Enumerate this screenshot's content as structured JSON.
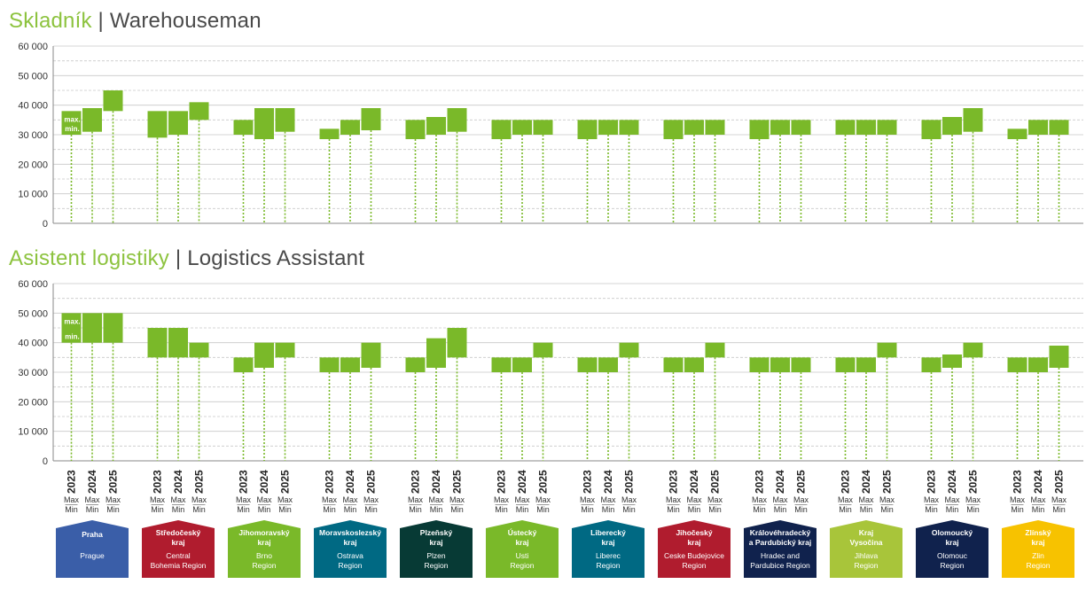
{
  "chart_data": [
    {
      "type": "range-bar",
      "title_cz": "Skladník",
      "title_sep": "|",
      "title_en": "Warehouseman",
      "ylim": [
        0,
        60000
      ],
      "yticks": [
        "0",
        "10 000",
        "20 000",
        "30 000",
        "40 000",
        "50 000",
        "60 000"
      ],
      "ytick_values": [
        0,
        10000,
        20000,
        30000,
        40000,
        50000,
        60000
      ],
      "grid": true,
      "bar_color": "#7ab929",
      "annot_max": "max.",
      "annot_min": "min.",
      "regions": [
        {
          "ranges": [
            [
              30000,
              38000
            ],
            [
              31000,
              39000
            ],
            [
              38000,
              45000
            ]
          ]
        },
        {
          "ranges": [
            [
              29000,
              38000
            ],
            [
              30000,
              38000
            ],
            [
              35000,
              41000
            ]
          ]
        },
        {
          "ranges": [
            [
              30000,
              35000
            ],
            [
              28500,
              39000
            ],
            [
              31000,
              39000
            ]
          ]
        },
        {
          "ranges": [
            [
              28500,
              32000
            ],
            [
              30000,
              35000
            ],
            [
              31500,
              39000
            ]
          ]
        },
        {
          "ranges": [
            [
              28500,
              35000
            ],
            [
              30000,
              36000
            ],
            [
              31000,
              39000
            ]
          ]
        },
        {
          "ranges": [
            [
              28500,
              35000
            ],
            [
              30000,
              35000
            ],
            [
              30000,
              35000
            ]
          ]
        },
        {
          "ranges": [
            [
              28500,
              35000
            ],
            [
              30000,
              35000
            ],
            [
              30000,
              35000
            ]
          ]
        },
        {
          "ranges": [
            [
              28500,
              35000
            ],
            [
              30000,
              35000
            ],
            [
              30000,
              35000
            ]
          ]
        },
        {
          "ranges": [
            [
              28500,
              35000
            ],
            [
              30000,
              35000
            ],
            [
              30000,
              35000
            ]
          ]
        },
        {
          "ranges": [
            [
              30000,
              35000
            ],
            [
              30000,
              35000
            ],
            [
              30000,
              35000
            ]
          ]
        },
        {
          "ranges": [
            [
              28500,
              35000
            ],
            [
              30000,
              36000
            ],
            [
              31000,
              39000
            ]
          ]
        },
        {
          "ranges": [
            [
              28500,
              32000
            ],
            [
              30000,
              35000
            ],
            [
              30000,
              35000
            ]
          ]
        }
      ]
    },
    {
      "type": "range-bar",
      "title_cz": "Asistent logistiky",
      "title_sep": "|",
      "title_en": "Logistics Assistant",
      "ylim": [
        0,
        60000
      ],
      "yticks": [
        "0",
        "10 000",
        "20 000",
        "30 000",
        "40 000",
        "50 000",
        "60 000"
      ],
      "ytick_values": [
        0,
        10000,
        20000,
        30000,
        40000,
        50000,
        60000
      ],
      "grid": true,
      "bar_color": "#7ab929",
      "annot_max": "max.",
      "annot_min": "min.",
      "regions": [
        {
          "ranges": [
            [
              40000,
              50000
            ],
            [
              40000,
              50000
            ],
            [
              40000,
              50000
            ]
          ]
        },
        {
          "ranges": [
            [
              35000,
              45000
            ],
            [
              35000,
              45000
            ],
            [
              35000,
              40000
            ]
          ]
        },
        {
          "ranges": [
            [
              30000,
              35000
            ],
            [
              31500,
              40000
            ],
            [
              35000,
              40000
            ]
          ]
        },
        {
          "ranges": [
            [
              30000,
              35000
            ],
            [
              30000,
              35000
            ],
            [
              31500,
              40000
            ]
          ]
        },
        {
          "ranges": [
            [
              30000,
              35000
            ],
            [
              31500,
              41500
            ],
            [
              35000,
              45000
            ]
          ]
        },
        {
          "ranges": [
            [
              30000,
              35000
            ],
            [
              30000,
              35000
            ],
            [
              35000,
              40000
            ]
          ]
        },
        {
          "ranges": [
            [
              30000,
              35000
            ],
            [
              30000,
              35000
            ],
            [
              35000,
              40000
            ]
          ]
        },
        {
          "ranges": [
            [
              30000,
              35000
            ],
            [
              30000,
              35000
            ],
            [
              35000,
              40000
            ]
          ]
        },
        {
          "ranges": [
            [
              30000,
              35000
            ],
            [
              30000,
              35000
            ],
            [
              30000,
              35000
            ]
          ]
        },
        {
          "ranges": [
            [
              30000,
              35000
            ],
            [
              30000,
              35000
            ],
            [
              35000,
              40000
            ]
          ]
        },
        {
          "ranges": [
            [
              30000,
              35000
            ],
            [
              31500,
              36000
            ],
            [
              35000,
              40000
            ]
          ]
        },
        {
          "ranges": [
            [
              30000,
              35000
            ],
            [
              30000,
              35000
            ],
            [
              31500,
              39000
            ]
          ]
        }
      ]
    }
  ],
  "x_axis": {
    "years": [
      "2023",
      "2024",
      "2025"
    ],
    "max_label": "Max",
    "min_label": "Min"
  },
  "regions": [
    {
      "cz": [
        "Praha"
      ],
      "en": [
        "Prague"
      ],
      "color": "#3a5ea8"
    },
    {
      "cz": [
        "Středočeský",
        "kraj"
      ],
      "en": [
        "Central",
        "Bohemia Region"
      ],
      "color": "#b01c2e"
    },
    {
      "cz": [
        "Jihomoravský",
        "kraj"
      ],
      "en": [
        "Brno",
        "Region"
      ],
      "color": "#7ab929"
    },
    {
      "cz": [
        "Moravskoslezský",
        "kraj"
      ],
      "en": [
        "Ostrava",
        "Region"
      ],
      "color": "#006983"
    },
    {
      "cz": [
        "Plzeňský",
        "kraj"
      ],
      "en": [
        "Plzen",
        "Region"
      ],
      "color": "#073a35"
    },
    {
      "cz": [
        "Ústecký",
        "kraj"
      ],
      "en": [
        "Usti",
        "Region"
      ],
      "color": "#7ab929"
    },
    {
      "cz": [
        "Liberecký",
        "kraj"
      ],
      "en": [
        "Liberec",
        "Region"
      ],
      "color": "#006983"
    },
    {
      "cz": [
        "Jihočeský",
        "kraj"
      ],
      "en": [
        "Ceske Budejovice",
        "Region"
      ],
      "color": "#b01c2e"
    },
    {
      "cz": [
        "Královéhradecký",
        "a Pardubický kraj"
      ],
      "en": [
        "Hradec and",
        "Pardubice Region"
      ],
      "color": "#10224d"
    },
    {
      "cz": [
        "Kraj",
        "Vysočina"
      ],
      "en": [
        "Jihlava",
        "Region"
      ],
      "color": "#a8c53a"
    },
    {
      "cz": [
        "Olomoucký",
        "kraj"
      ],
      "en": [
        "Olomouc",
        "Region"
      ],
      "color": "#10224d"
    },
    {
      "cz": [
        "Zlínský",
        "kraj"
      ],
      "en": [
        "Zlin",
        "Region"
      ],
      "color": "#f7c200"
    }
  ]
}
